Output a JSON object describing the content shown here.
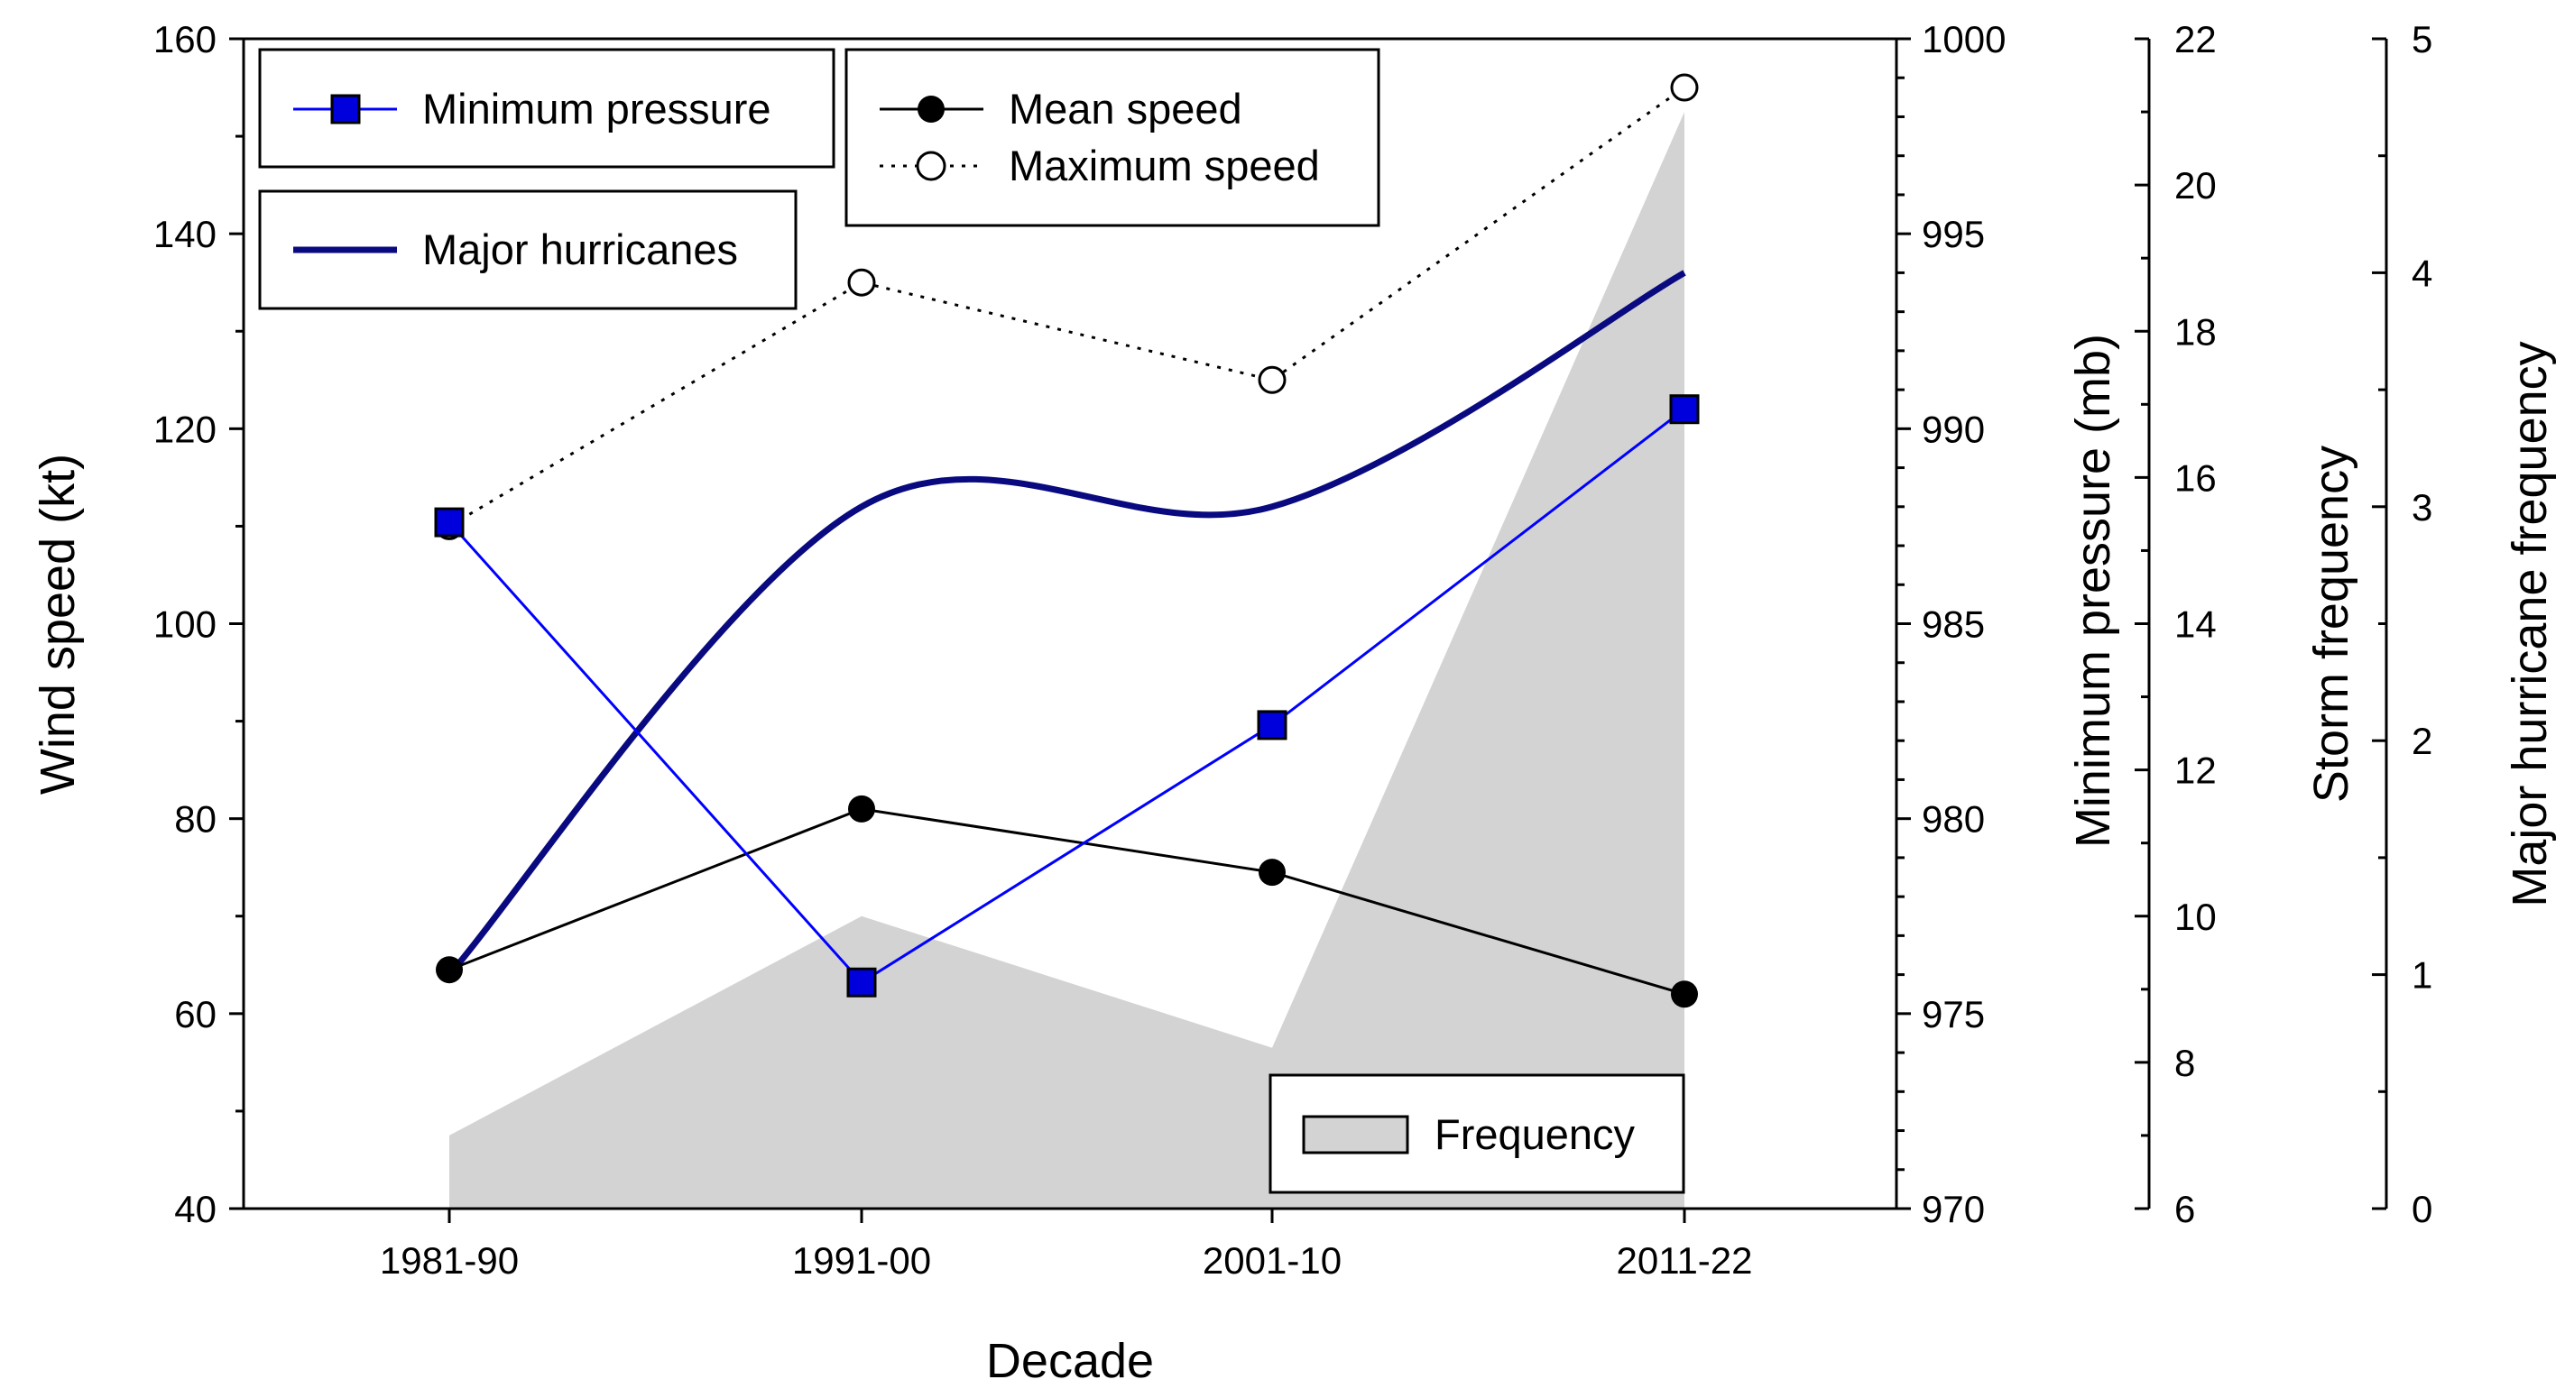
{
  "chart_data": {
    "type": "line",
    "title": "",
    "xlabel": "Decade",
    "categories": [
      "1981-90",
      "1991-00",
      "2001-10",
      "2011-22"
    ],
    "axes": {
      "wind_speed": {
        "label": "Wind speed (kt)",
        "range": [
          40,
          160
        ],
        "ticks": [
          "40",
          "60",
          "80",
          "100",
          "120",
          "140",
          "160"
        ]
      },
      "pressure": {
        "label": "Minimum pressure (mb)",
        "range": [
          970,
          1000
        ],
        "ticks": [
          "970",
          "975",
          "980",
          "985",
          "990",
          "995",
          "1000"
        ]
      },
      "storm_freq": {
        "label": "Storm frequency",
        "range": [
          6,
          22
        ],
        "ticks": [
          "6",
          "8",
          "10",
          "12",
          "14",
          "16",
          "18",
          "20",
          "22"
        ]
      },
      "major_freq": {
        "label": "Major hurricane frequency",
        "range": [
          0,
          5
        ],
        "ticks": [
          "0",
          "1",
          "2",
          "3",
          "4",
          "5"
        ]
      }
    },
    "series": [
      {
        "name": "Frequency",
        "axis": "storm_freq",
        "style": "area",
        "values": [
          7,
          10,
          8.2,
          21
        ]
      },
      {
        "name": "Minimum pressure",
        "axis": "pressure",
        "style": "line-square",
        "values": [
          987.6,
          975.8,
          982.4,
          990.5
        ]
      },
      {
        "name": "Mean speed",
        "axis": "wind_speed",
        "style": "line-filled-circle",
        "values": [
          64.5,
          81,
          74.5,
          62
        ]
      },
      {
        "name": "Maximum speed",
        "axis": "wind_speed",
        "style": "dotted-open-circle",
        "values": [
          110,
          135,
          125,
          155
        ]
      },
      {
        "name": "Major hurricanes",
        "axis": "major_freq",
        "style": "smooth-thick",
        "values": [
          1,
          3,
          3,
          4
        ]
      }
    ],
    "legend": {
      "minimum_pressure": "Minimum pressure",
      "major_hurricanes": "Major hurricanes",
      "mean_speed": "Mean speed",
      "maximum_speed": "Maximum speed",
      "frequency": "Frequency"
    },
    "colors": {
      "pressure_line": "#0000ff",
      "pressure_marker": "#0000dd",
      "major_line": "#0a0a80",
      "area_fill": "#d3d3d3",
      "ink": "#000000"
    }
  }
}
